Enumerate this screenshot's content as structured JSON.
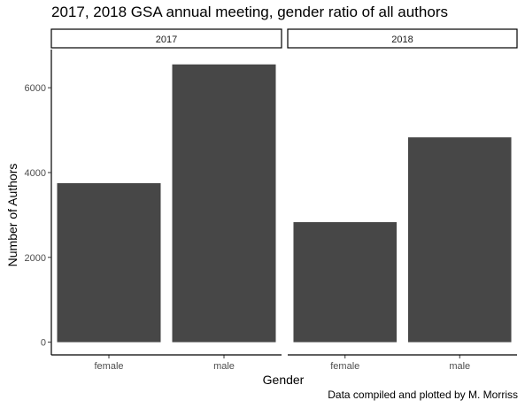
{
  "chart_data": {
    "type": "bar",
    "title": "2017, 2018 GSA annual meeting, gender ratio of all authors",
    "xlabel": "Gender",
    "ylabel": "Number of Authors",
    "caption": "Data compiled and plotted by M. Morriss",
    "ylim": [
      -300,
      6900
    ],
    "yticks": [
      0,
      2000,
      4000,
      6000
    ],
    "ytick_labels": [
      "0",
      "2000",
      "4000",
      "6000"
    ],
    "grid": false,
    "bar_color": "#474747",
    "panels": [
      {
        "label": "2017",
        "categories": [
          "female",
          "male"
        ],
        "values": [
          3750,
          6550
        ]
      },
      {
        "label": "2018",
        "categories": [
          "female",
          "male"
        ],
        "values": [
          2830,
          4830
        ]
      }
    ]
  }
}
